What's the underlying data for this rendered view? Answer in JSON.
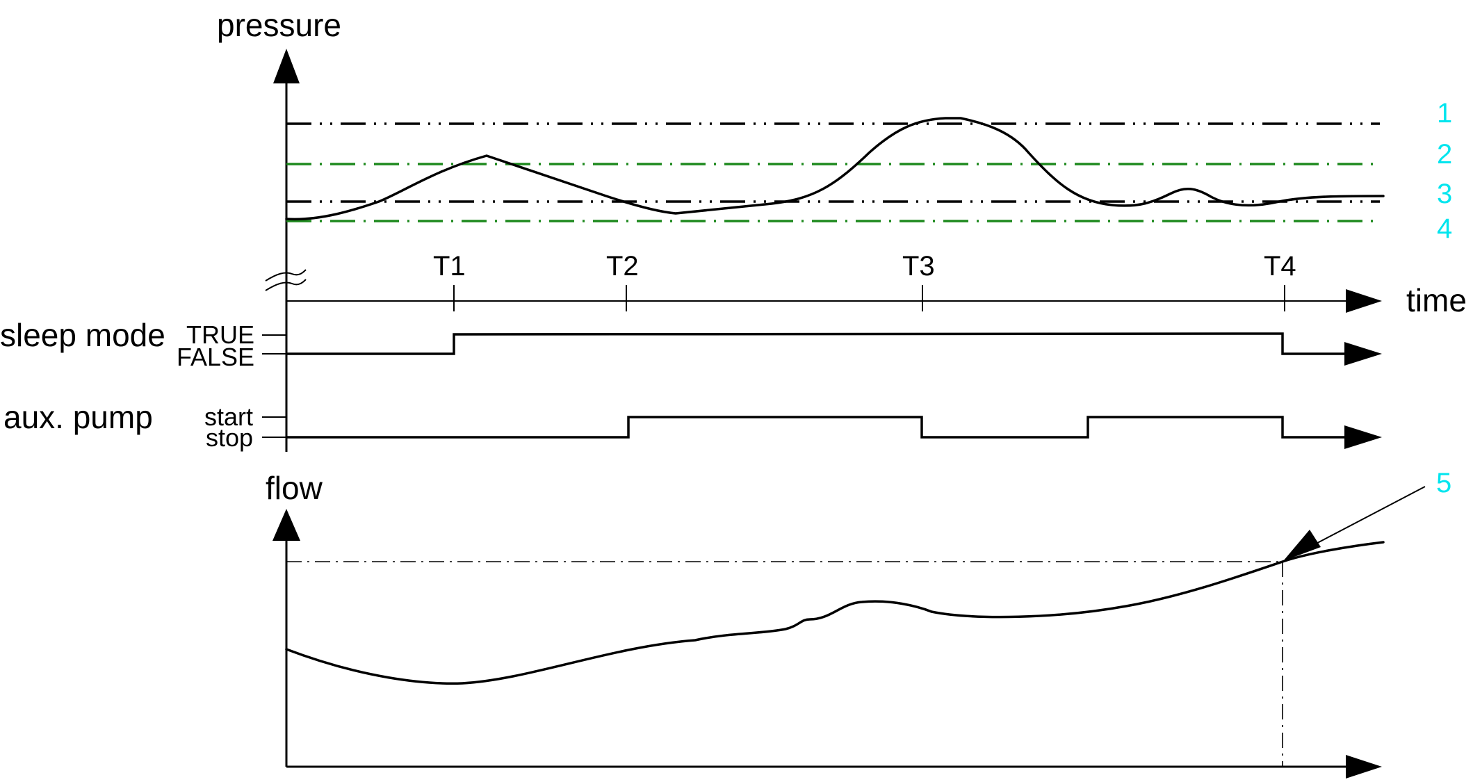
{
  "labels": {
    "pressure": "pressure",
    "time": "time",
    "flow": "flow",
    "sleep_mode": "sleep mode",
    "aux_pump": "aux. pump",
    "true": "TRUE",
    "false": "FALSE",
    "start": "start",
    "stop": "stop"
  },
  "time_marks": [
    "T1",
    "T2",
    "T3",
    "T4"
  ],
  "callouts": [
    "1",
    "2",
    "3",
    "4",
    "5"
  ],
  "colors": {
    "callout": "#00e5ee",
    "threshold_green": "#1e8a1e",
    "threshold_black": "#000000"
  }
}
